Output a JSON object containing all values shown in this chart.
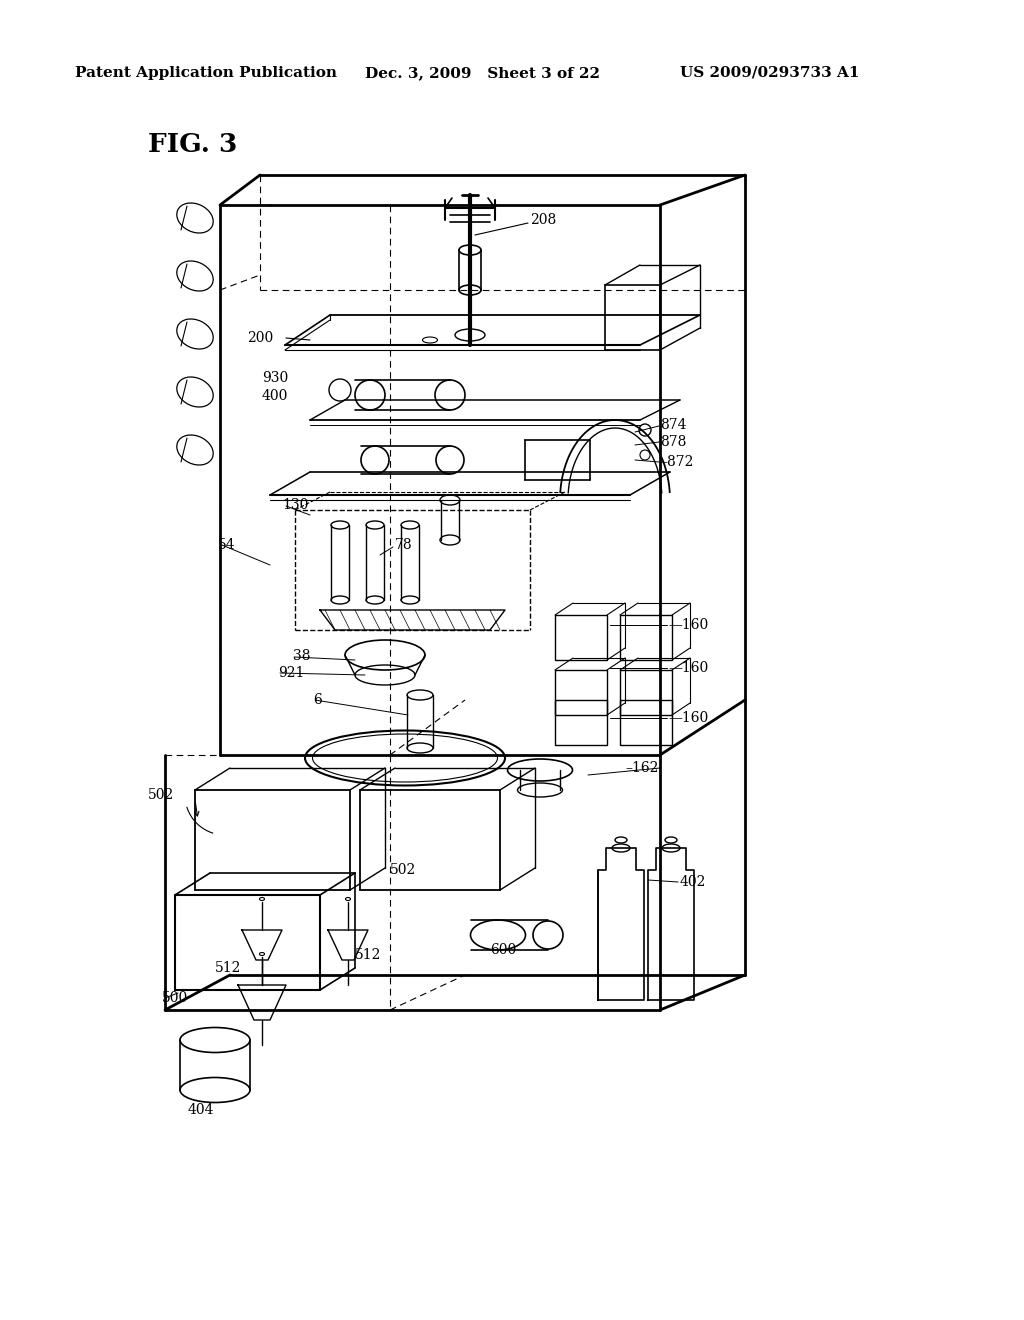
{
  "background_color": "#ffffff",
  "header_left": "Patent Application Publication",
  "header_center": "Dec. 3, 2009   Sheet 3 of 22",
  "header_right": "US 2009/0293733 A1",
  "fig_label": "FIG. 3",
  "lc": "black",
  "lw": 1.3
}
